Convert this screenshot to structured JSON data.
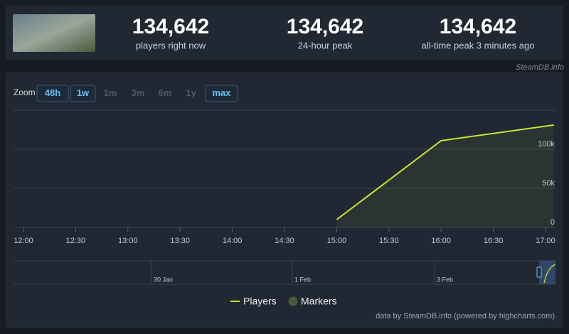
{
  "header": {
    "stats": [
      {
        "value": "134,642",
        "label": "players right now"
      },
      {
        "value": "134,642",
        "label": "24-hour peak"
      },
      {
        "value": "134,642",
        "label": "all-time peak 3 minutes ago"
      }
    ],
    "watermark": "SteamDB.info"
  },
  "zoom": {
    "label": "Zoom",
    "buttons": [
      {
        "text": "48h",
        "active": true
      },
      {
        "text": "1w",
        "active": true
      },
      {
        "text": "1m",
        "active": false
      },
      {
        "text": "3m",
        "active": false
      },
      {
        "text": "6m",
        "active": false
      },
      {
        "text": "1y",
        "active": false
      },
      {
        "text": "max",
        "active": true
      }
    ]
  },
  "chart_data": {
    "type": "line",
    "x": [
      15,
      16,
      17.08
    ],
    "series": [
      {
        "name": "Players",
        "color": "#c6e633",
        "values": [
          10000,
          111000,
          131000
        ]
      }
    ],
    "markers": {
      "name": "Markers",
      "color": "#4a5a3c"
    },
    "xlim": [
      12,
      17.12
    ],
    "xticks": [
      {
        "value": 12,
        "label": "12:00"
      },
      {
        "value": 12.5,
        "label": "12:30"
      },
      {
        "value": 13,
        "label": "13:00"
      },
      {
        "value": 13.5,
        "label": "13:30"
      },
      {
        "value": 14,
        "label": "14:00"
      },
      {
        "value": 14.5,
        "label": "14:30"
      },
      {
        "value": 15,
        "label": "15:00"
      },
      {
        "value": 15.5,
        "label": "15:30"
      },
      {
        "value": 16,
        "label": "16:00"
      },
      {
        "value": 16.5,
        "label": "16:30"
      },
      {
        "value": 17,
        "label": "17:00"
      }
    ],
    "ylim": [
      0,
      150000
    ],
    "yticks": [
      0,
      {
        "value": 50000,
        "label": "50k"
      },
      {
        "value": 100000,
        "label": "100k"
      }
    ],
    "grid": true,
    "navigator": [
      "30 Jan",
      "1 Feb",
      "3 Feb"
    ],
    "credits": "data by SteamDB.info (powered by highcharts.com)"
  }
}
